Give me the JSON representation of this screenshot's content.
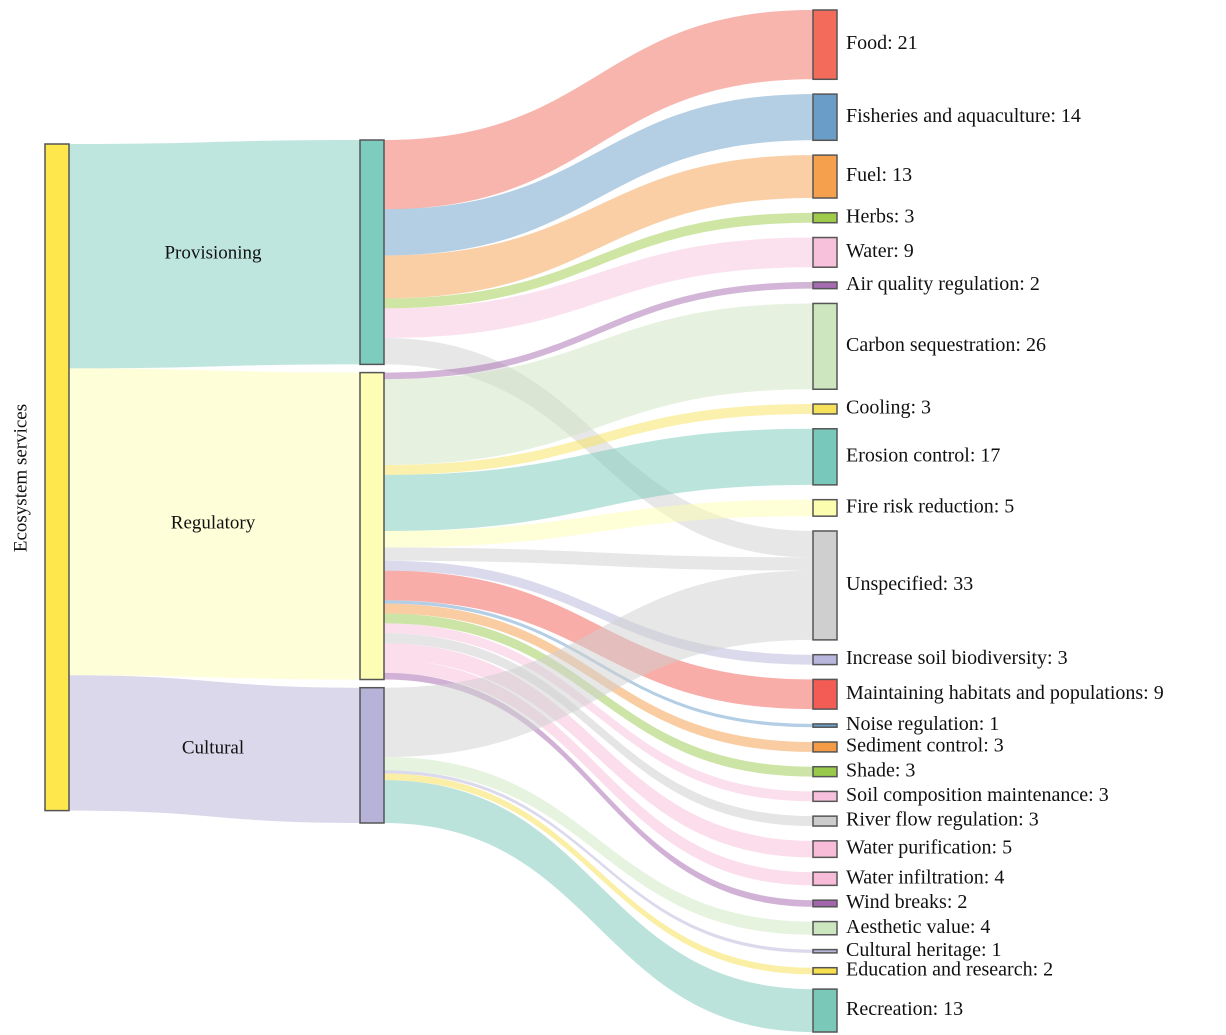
{
  "chart_data": {
    "type": "sankey",
    "root": "Ecosystem services",
    "root_color": "#fde74c",
    "groups": [
      "Provisioning",
      "Regulatory",
      "Cultural"
    ],
    "group_colors": [
      "#7dcdbf",
      "#fdfdb3",
      "#b7b2d7"
    ],
    "targets": {
      "values": [
        21,
        14,
        13,
        3,
        9,
        2,
        26,
        3,
        17,
        5,
        33,
        3,
        9,
        1,
        3,
        3,
        3,
        3,
        5,
        4,
        2,
        4,
        1,
        2,
        13
      ],
      "value_labels": [
        "Food: 21",
        "Fisheries and aquaculture: 14",
        "Fuel: 13",
        "Herbs: 3",
        "Water: 9",
        "Air quality regulation: 2",
        "Carbon sequestration: 26",
        "Cooling: 3",
        "Erosion control: 17",
        "Fire risk reduction: 5",
        "Unspecified: 33",
        "Increase soil biodiversity: 3",
        "Maintaining habitats and populations: 9",
        "Noise regulation: 1",
        "Sediment control: 3",
        "Shade: 3",
        "Soil composition maintenance: 3",
        "River flow regulation: 3",
        "Water purification: 5",
        "Water infiltration: 4",
        "Wind breaks: 2",
        "Aesthetic value: 4",
        "Cultural heritage: 1",
        "Education and research: 2",
        "Recreation: 13"
      ],
      "colors": [
        "#f26b5b",
        "#6a9dc8",
        "#f5a04d",
        "#9ecb4a",
        "#f7c1dc",
        "#a66bb0",
        "#cde6c0",
        "#f7e15a",
        "#78c9bb",
        "#fdfdb0",
        "#cfcfcf",
        "#b8b6dc",
        "#f25c54",
        "#6aa0cc",
        "#f59a45",
        "#99c94b",
        "#f7c0dc",
        "#cccccc",
        "#f8bcd8",
        "#f8bcd8",
        "#a366ad",
        "#cce7c0",
        "#b8b6dc",
        "#f7df4d",
        "#79c8b8"
      ]
    },
    "links": [
      {
        "source": 0,
        "target": 0,
        "value": 21
      },
      {
        "source": 0,
        "target": 1,
        "value": 14
      },
      {
        "source": 0,
        "target": 2,
        "value": 13
      },
      {
        "source": 0,
        "target": 3,
        "value": 3
      },
      {
        "source": 0,
        "target": 4,
        "value": 9
      },
      {
        "source": 0,
        "target": 10,
        "value": 8
      },
      {
        "source": 1,
        "target": 5,
        "value": 2
      },
      {
        "source": 1,
        "target": 6,
        "value": 26
      },
      {
        "source": 1,
        "target": 7,
        "value": 3
      },
      {
        "source": 1,
        "target": 8,
        "value": 17
      },
      {
        "source": 1,
        "target": 9,
        "value": 5
      },
      {
        "source": 1,
        "target": 10,
        "value": 4
      },
      {
        "source": 1,
        "target": 11,
        "value": 3
      },
      {
        "source": 1,
        "target": 12,
        "value": 9
      },
      {
        "source": 1,
        "target": 13,
        "value": 1
      },
      {
        "source": 1,
        "target": 14,
        "value": 3
      },
      {
        "source": 1,
        "target": 15,
        "value": 3
      },
      {
        "source": 1,
        "target": 16,
        "value": 3
      },
      {
        "source": 1,
        "target": 17,
        "value": 3
      },
      {
        "source": 1,
        "target": 18,
        "value": 5
      },
      {
        "source": 1,
        "target": 19,
        "value": 4
      },
      {
        "source": 1,
        "target": 20,
        "value": 2
      },
      {
        "source": 2,
        "target": 10,
        "value": 21
      },
      {
        "source": 2,
        "target": 21,
        "value": 4
      },
      {
        "source": 2,
        "target": 22,
        "value": 1
      },
      {
        "source": 2,
        "target": 23,
        "value": 2
      },
      {
        "source": 2,
        "target": 24,
        "value": 13
      }
    ]
  }
}
